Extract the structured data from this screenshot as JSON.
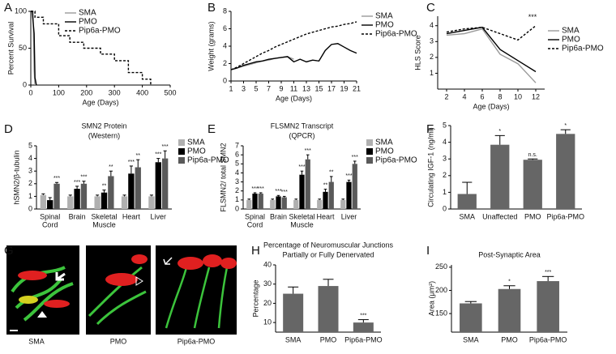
{
  "chart_data": [
    {
      "type": "line",
      "label": "A",
      "xlabel": "Age (Days)",
      "ylabel": "Percent Survival",
      "xlim": [
        0,
        500
      ],
      "xticks": [
        0,
        100,
        200,
        300,
        400,
        500
      ],
      "ylim": [
        0,
        100
      ],
      "yticks": [
        0,
        50,
        100
      ],
      "series": [
        {
          "name": "SMA",
          "color": "#999999",
          "dashed": false,
          "x": [
            0,
            8,
            10,
            12,
            15
          ],
          "values": [
            100,
            100,
            60,
            20,
            0
          ]
        },
        {
          "name": "PMO",
          "color": "#000000",
          "dashed": false,
          "x": [
            0,
            5,
            12,
            15,
            20
          ],
          "values": [
            100,
            100,
            70,
            10,
            0
          ]
        },
        {
          "name": "Pip6a-PMO",
          "color": "#000000",
          "dashed": true,
          "x": [
            0,
            15,
            15,
            45,
            45,
            100,
            100,
            140,
            140,
            190,
            190,
            250,
            250,
            300,
            300,
            350,
            350,
            400,
            400,
            430,
            430
          ],
          "values": [
            100,
            100,
            92,
            92,
            83,
            83,
            67,
            67,
            58,
            58,
            50,
            50,
            42,
            42,
            33,
            33,
            17,
            17,
            8,
            8,
            0
          ]
        }
      ]
    },
    {
      "type": "line",
      "label": "B",
      "xlabel": "Age (Days)",
      "ylabel": "Weight (grams)",
      "xlim": [
        1,
        21
      ],
      "xticks": [
        1,
        3,
        5,
        7,
        9,
        11,
        13,
        15,
        17,
        19,
        21
      ],
      "ylim": [
        0,
        8
      ],
      "yticks": [
        0,
        2,
        4,
        6,
        8
      ],
      "x": [
        1,
        2,
        3,
        4,
        5,
        6,
        7,
        8,
        9,
        10,
        11,
        12,
        13,
        14,
        15,
        16,
        17,
        18,
        19,
        20,
        21
      ],
      "series": [
        {
          "name": "SMA",
          "color": "#999999",
          "dashed": false,
          "values": [
            1.3,
            1.5,
            1.7,
            1.9,
            2.1,
            2.3,
            2.4,
            2.6,
            2.7,
            2.8,
            2.5,
            null,
            null,
            null,
            null,
            null,
            null,
            null,
            null,
            null,
            null
          ]
        },
        {
          "name": "PMO",
          "color": "#000000",
          "dashed": false,
          "values": [
            1.3,
            1.5,
            1.8,
            2.0,
            2.2,
            2.3,
            2.5,
            2.6,
            2.7,
            2.8,
            2.2,
            2.5,
            2.2,
            2.4,
            2.3,
            3.5,
            4.2,
            4.3,
            3.9,
            3.5,
            3.2
          ]
        },
        {
          "name": "Pip6a-PMO",
          "color": "#000000",
          "dashed": true,
          "values": [
            1.3,
            1.6,
            2.0,
            2.4,
            2.8,
            3.2,
            3.5,
            3.9,
            4.2,
            4.5,
            4.8,
            5.1,
            5.4,
            5.6,
            5.8,
            6.0,
            6.2,
            6.3,
            6.5,
            6.6,
            6.8
          ]
        }
      ]
    },
    {
      "type": "line",
      "label": "C",
      "xlabel": "Age (Days)",
      "ylabel": "HLS Score",
      "annotation": "***",
      "xlim": [
        1,
        13
      ],
      "xticks": [
        2,
        4,
        6,
        8,
        10,
        12
      ],
      "ylim": [
        0,
        4.6
      ],
      "yticks": [
        1,
        2,
        3,
        4
      ],
      "x": [
        2,
        4,
        6,
        8,
        10,
        12
      ],
      "series": [
        {
          "name": "SMA",
          "color": "#999999",
          "dashed": false,
          "values": [
            3.4,
            3.5,
            3.8,
            2.2,
            1.6,
            0.4
          ]
        },
        {
          "name": "PMO",
          "color": "#000000",
          "dashed": false,
          "values": [
            3.5,
            3.7,
            3.9,
            2.5,
            1.8,
            1.1
          ]
        },
        {
          "name": "Pip6a-PMO",
          "color": "#000000",
          "dashed": true,
          "values": [
            3.6,
            3.8,
            3.9,
            3.5,
            3.1,
            4.0
          ]
        }
      ]
    },
    {
      "type": "bar",
      "label": "D",
      "title": "SMN2 Protein",
      "subtitle": "(Western)",
      "ylabel": "hSMN2/β-tubulin",
      "ylim": [
        0,
        5
      ],
      "yticks": [
        0,
        1,
        2,
        3,
        4,
        5
      ],
      "categories": [
        [
          "Spinal",
          "Cord"
        ],
        [
          "Brain"
        ],
        [
          "Skeletal",
          "Muscle"
        ],
        [
          "Heart"
        ],
        [
          "Liver"
        ]
      ],
      "series": [
        {
          "name": "SMA",
          "color": "#b0b0b0",
          "values": [
            1.1,
            1.0,
            1.0,
            1.0,
            1.0
          ],
          "errors": [
            0.1,
            0.1,
            0.1,
            0.1,
            0.1
          ],
          "stars": [
            null,
            null,
            null,
            null,
            null
          ]
        },
        {
          "name": "PMO",
          "color": "#000000",
          "values": [
            0.7,
            1.6,
            1.3,
            2.8,
            3.7
          ],
          "errors": [
            0.2,
            0.2,
            0.2,
            0.6,
            0.3
          ],
          "stars": [
            null,
            "***",
            "**",
            "***",
            "***"
          ]
        },
        {
          "name": "Pip6a-PMO",
          "color": "#5a5a5a",
          "values": [
            2.0,
            2.0,
            2.6,
            3.3,
            4.0
          ],
          "errors": [
            0.1,
            0.2,
            0.4,
            0.6,
            0.6
          ],
          "stars": [
            "***",
            "***",
            "**",
            "**",
            "***"
          ]
        }
      ]
    },
    {
      "type": "bar",
      "label": "E",
      "title": "FLSMN2 Transcript",
      "subtitle": "(QPCR)",
      "ylabel": "FLSMN2/ total SMN2",
      "ylim": [
        0,
        7
      ],
      "yticks": [
        0,
        1,
        2,
        3,
        4,
        5,
        6,
        7
      ],
      "categories": [
        [
          "Spinal",
          "Cord"
        ],
        [
          "Brain"
        ],
        [
          "Skeletal",
          "Muscle"
        ],
        [
          "Heart"
        ],
        [
          "Liver"
        ]
      ],
      "series": [
        {
          "name": "SMA",
          "color": "#b0b0b0",
          "values": [
            1.0,
            1.0,
            1.0,
            1.0,
            1.0
          ],
          "errors": [
            0.1,
            0.1,
            0.1,
            0.1,
            0.1
          ],
          "stars": [
            null,
            null,
            null,
            null,
            null
          ]
        },
        {
          "name": "PMO",
          "color": "#000000",
          "values": [
            1.7,
            1.4,
            3.8,
            1.9,
            3.0
          ],
          "errors": [
            0.1,
            0.1,
            0.4,
            0.3,
            0.2
          ],
          "stars": [
            "***",
            "***",
            "***",
            "**",
            "***"
          ]
        },
        {
          "name": "Pip6a-PMO",
          "color": "#5a5a5a",
          "values": [
            1.7,
            1.3,
            5.5,
            3.0,
            5.0
          ],
          "errors": [
            0.1,
            0.1,
            0.5,
            0.6,
            0.3
          ],
          "stars": [
            "***",
            "***",
            "***",
            "**",
            "***"
          ]
        }
      ]
    },
    {
      "type": "bar",
      "label": "F",
      "ylabel": "Circulating IGF-1 (ng/ml)",
      "ylim": [
        0,
        5
      ],
      "yticks": [
        0,
        1,
        2,
        3,
        4,
        5
      ],
      "categories": [
        [
          "SMA"
        ],
        [
          "Unaffected"
        ],
        [
          "PMO"
        ],
        [
          "Pip6a-PMO"
        ]
      ],
      "series": [
        {
          "color": "#666666",
          "values": [
            0.9,
            3.85,
            2.95,
            4.5
          ],
          "errors": [
            0.7,
            0.55,
            0.05,
            0.25
          ],
          "stars": [
            null,
            "*",
            "n.s.",
            "*"
          ]
        }
      ]
    },
    {
      "type": "bar",
      "label": "H",
      "title": "Percentage of Neuromuscular Junctions",
      "subtitle": "Partially or Fully Denervated",
      "ylabel": "Percentage",
      "ylim": [
        5,
        40
      ],
      "yticks": [
        10,
        20,
        30,
        40
      ],
      "categories": [
        [
          "SMA"
        ],
        [
          "PMO"
        ],
        [
          "Pip6a-PMO"
        ]
      ],
      "series": [
        {
          "color": "#666666",
          "values": [
            25,
            29,
            10
          ],
          "errors": [
            3.5,
            3.5,
            1.5
          ],
          "stars": [
            null,
            null,
            "***"
          ]
        }
      ]
    },
    {
      "type": "bar",
      "label": "I",
      "title": "Post-Synaptic Area",
      "ylabel": "Area (μm²)",
      "ylim": [
        110,
        255
      ],
      "yticks": [
        150,
        200,
        250
      ],
      "categories": [
        [
          "SMA"
        ],
        [
          "PMO"
        ],
        [
          "Pip6a-PMO"
        ]
      ],
      "series": [
        {
          "color": "#666666",
          "values": [
            172,
            203,
            220
          ],
          "errors": [
            4,
            7,
            10
          ],
          "stars": [
            null,
            "*",
            "***"
          ]
        }
      ]
    }
  ],
  "image_panel": {
    "label": "G",
    "captions": [
      "SMA",
      "PMO",
      "Pip6a-PMO"
    ]
  }
}
